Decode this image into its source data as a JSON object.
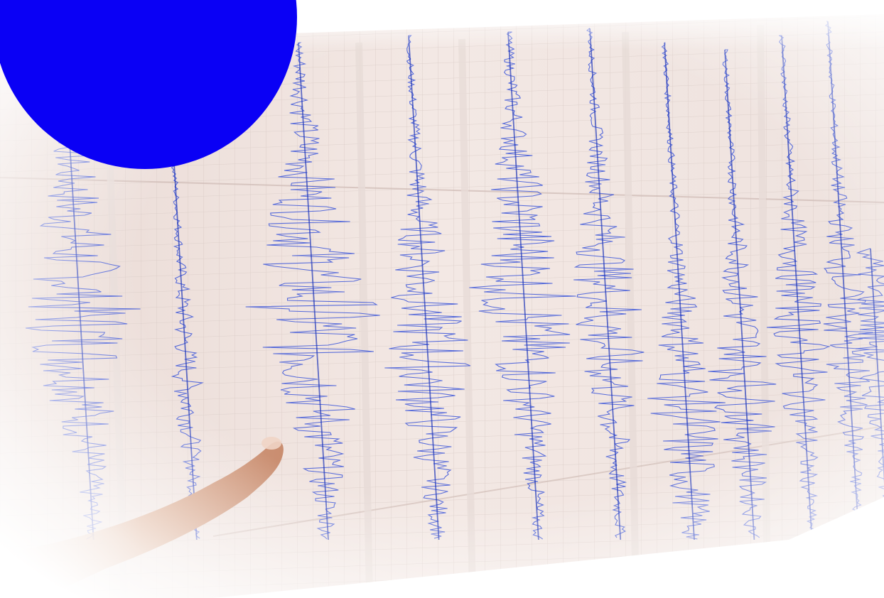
{
  "image": {
    "subject": "seismograph-recording",
    "paper_color": "#f1e7e3",
    "grid_color": "#d9cbc6",
    "trace_color": "#3b55d8",
    "trace_dark_color": "#1f36b8",
    "badge_color": "#0a00f5",
    "badge_mark_color": "#ffffff",
    "finger_color": "#d9a688",
    "vignette_color": "#ffffff"
  },
  "badge": {
    "icon": "blue-circle-badge-with-white-tick"
  },
  "traces": [
    {
      "id": "trace-1",
      "amplitude": 0.9
    },
    {
      "id": "trace-2",
      "amplitude": 0.2
    },
    {
      "id": "trace-3",
      "amplitude": 1.0
    },
    {
      "id": "trace-4",
      "amplitude": 0.7
    },
    {
      "id": "trace-5",
      "amplitude": 0.8
    },
    {
      "id": "trace-6",
      "amplitude": 0.6
    },
    {
      "id": "trace-7",
      "amplitude": 0.55
    },
    {
      "id": "trace-8",
      "amplitude": 0.5
    },
    {
      "id": "trace-9",
      "amplitude": 0.45
    },
    {
      "id": "trace-10",
      "amplitude": 0.4
    },
    {
      "id": "trace-11",
      "amplitude": 0.35
    }
  ]
}
